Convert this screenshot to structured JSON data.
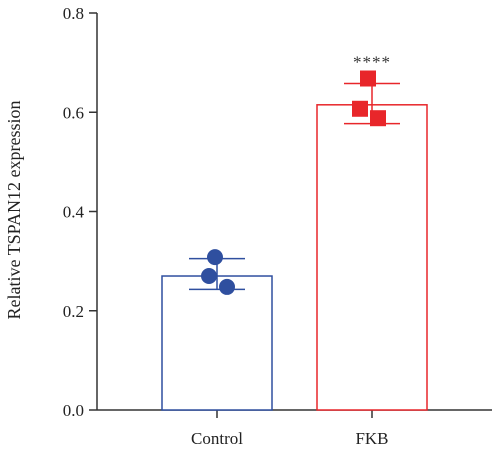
{
  "chart_data": {
    "type": "bar",
    "ylabel": "Relative TSPAN12 expression",
    "ylim": [
      0,
      0.8
    ],
    "yticks": [
      0.0,
      0.2,
      0.4,
      0.6,
      0.8
    ],
    "ytick_labels": [
      "0.0",
      "0.2",
      "0.4",
      "0.6",
      "0.8"
    ],
    "categories": [
      "Control",
      "FKB"
    ],
    "bars": [
      {
        "category": "Control",
        "mean": 0.27,
        "error_low": 0.243,
        "error_high": 0.305,
        "color": "#2f4f9f",
        "marker": "circle",
        "points": [
          0.308,
          0.27,
          0.248
        ]
      },
      {
        "category": "FKB",
        "mean": 0.615,
        "error_low": 0.577,
        "error_high": 0.658,
        "color": "#e8262a",
        "marker": "square",
        "points": [
          0.668,
          0.607,
          0.588
        ],
        "annotation": "****"
      }
    ]
  }
}
